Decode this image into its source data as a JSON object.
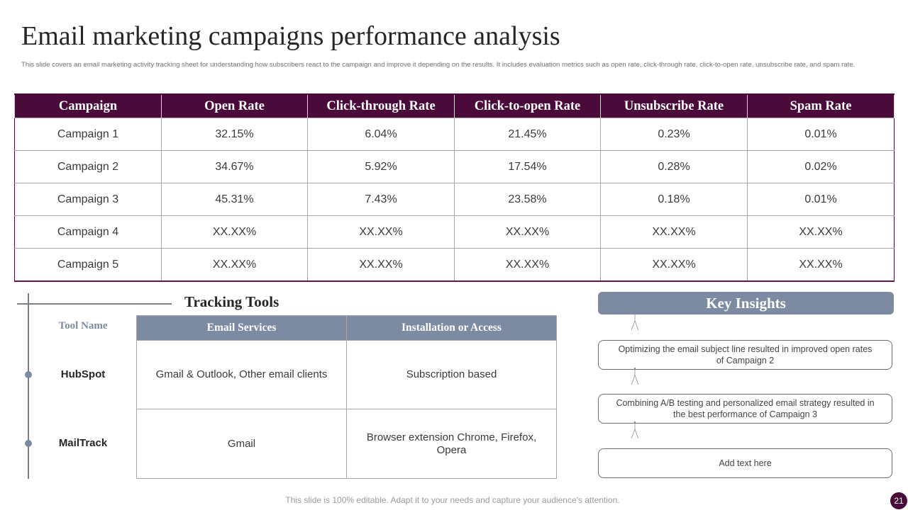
{
  "title": "Email marketing campaigns performance analysis",
  "subtitle": "This slide covers an email marketing activity tracking sheet for understanding how subscribers react to the campaign and improve it depending on the results. It includes evaluation metrics such as open rate, click-through rate, click-to-open rate, unsubscribe rate, and spam rate.",
  "performance_table": {
    "headers": [
      "Campaign",
      "Open Rate",
      "Click-through Rate",
      "Click-to-open Rate",
      "Unsubscribe Rate",
      "Spam Rate"
    ],
    "rows": [
      [
        "Campaign 1",
        "32.15%",
        "6.04%",
        "21.45%",
        "0.23%",
        "0.01%"
      ],
      [
        "Campaign 2",
        "34.67%",
        "5.92%",
        "17.54%",
        "0.28%",
        "0.02%"
      ],
      [
        "Campaign 3",
        "45.31%",
        "7.43%",
        "23.58%",
        "0.18%",
        "0.01%"
      ],
      [
        "Campaign 4",
        "XX.XX%",
        "XX.XX%",
        "XX.XX%",
        "XX.XX%",
        "XX.XX%"
      ],
      [
        "Campaign 5",
        "XX.XX%",
        "XX.XX%",
        "XX.XX%",
        "XX.XX%",
        "XX.XX%"
      ]
    ]
  },
  "tracking_tools": {
    "title": "Tracking Tools",
    "tool_name_header": "Tool Name",
    "headers": [
      "Email Services",
      "Installation or Access"
    ],
    "tools": [
      {
        "name": "HubSpot",
        "email_services": "Gmail & Outlook, Other email clients",
        "access": "Subscription based"
      },
      {
        "name": "MailTrack",
        "email_services": "Gmail",
        "access": "Browser extension Chrome, Firefox, Opera"
      }
    ]
  },
  "key_insights": {
    "title": "Key Insights",
    "items": [
      "Optimizing the email subject line resulted in improved  open rates of Campaign  2",
      "Combining A/B testing and personalized email strategy resulted in the best performance  of Campaign  3",
      "Add text here"
    ]
  },
  "footer": "This slide is 100% editable. Adapt it to your needs and capture your audience's attention.",
  "page_number": "21",
  "colors": {
    "primary": "#4a0b3a",
    "secondary": "#7c8aa2",
    "text": "#262626"
  }
}
